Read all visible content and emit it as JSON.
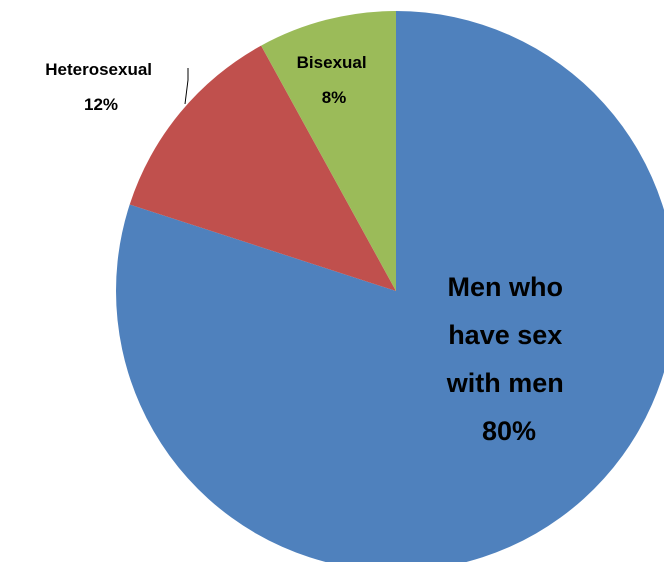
{
  "chart_data": {
    "type": "pie",
    "title": "",
    "categories": [
      "Men who have sex with men",
      "Heterosexual",
      "Bisexual"
    ],
    "values": [
      80,
      12,
      8
    ],
    "unit": "%",
    "colors": [
      "#4F81BD",
      "#C0504D",
      "#9BBB59"
    ],
    "labels": [
      {
        "name_lines": [
          "Men who",
          "have sex",
          "with men"
        ],
        "pct": "80%"
      },
      {
        "name_lines": [
          "Heterosexual"
        ],
        "pct": "12%"
      },
      {
        "name_lines": [
          "Bisexual"
        ],
        "pct": "8%"
      }
    ],
    "legend": "none"
  }
}
